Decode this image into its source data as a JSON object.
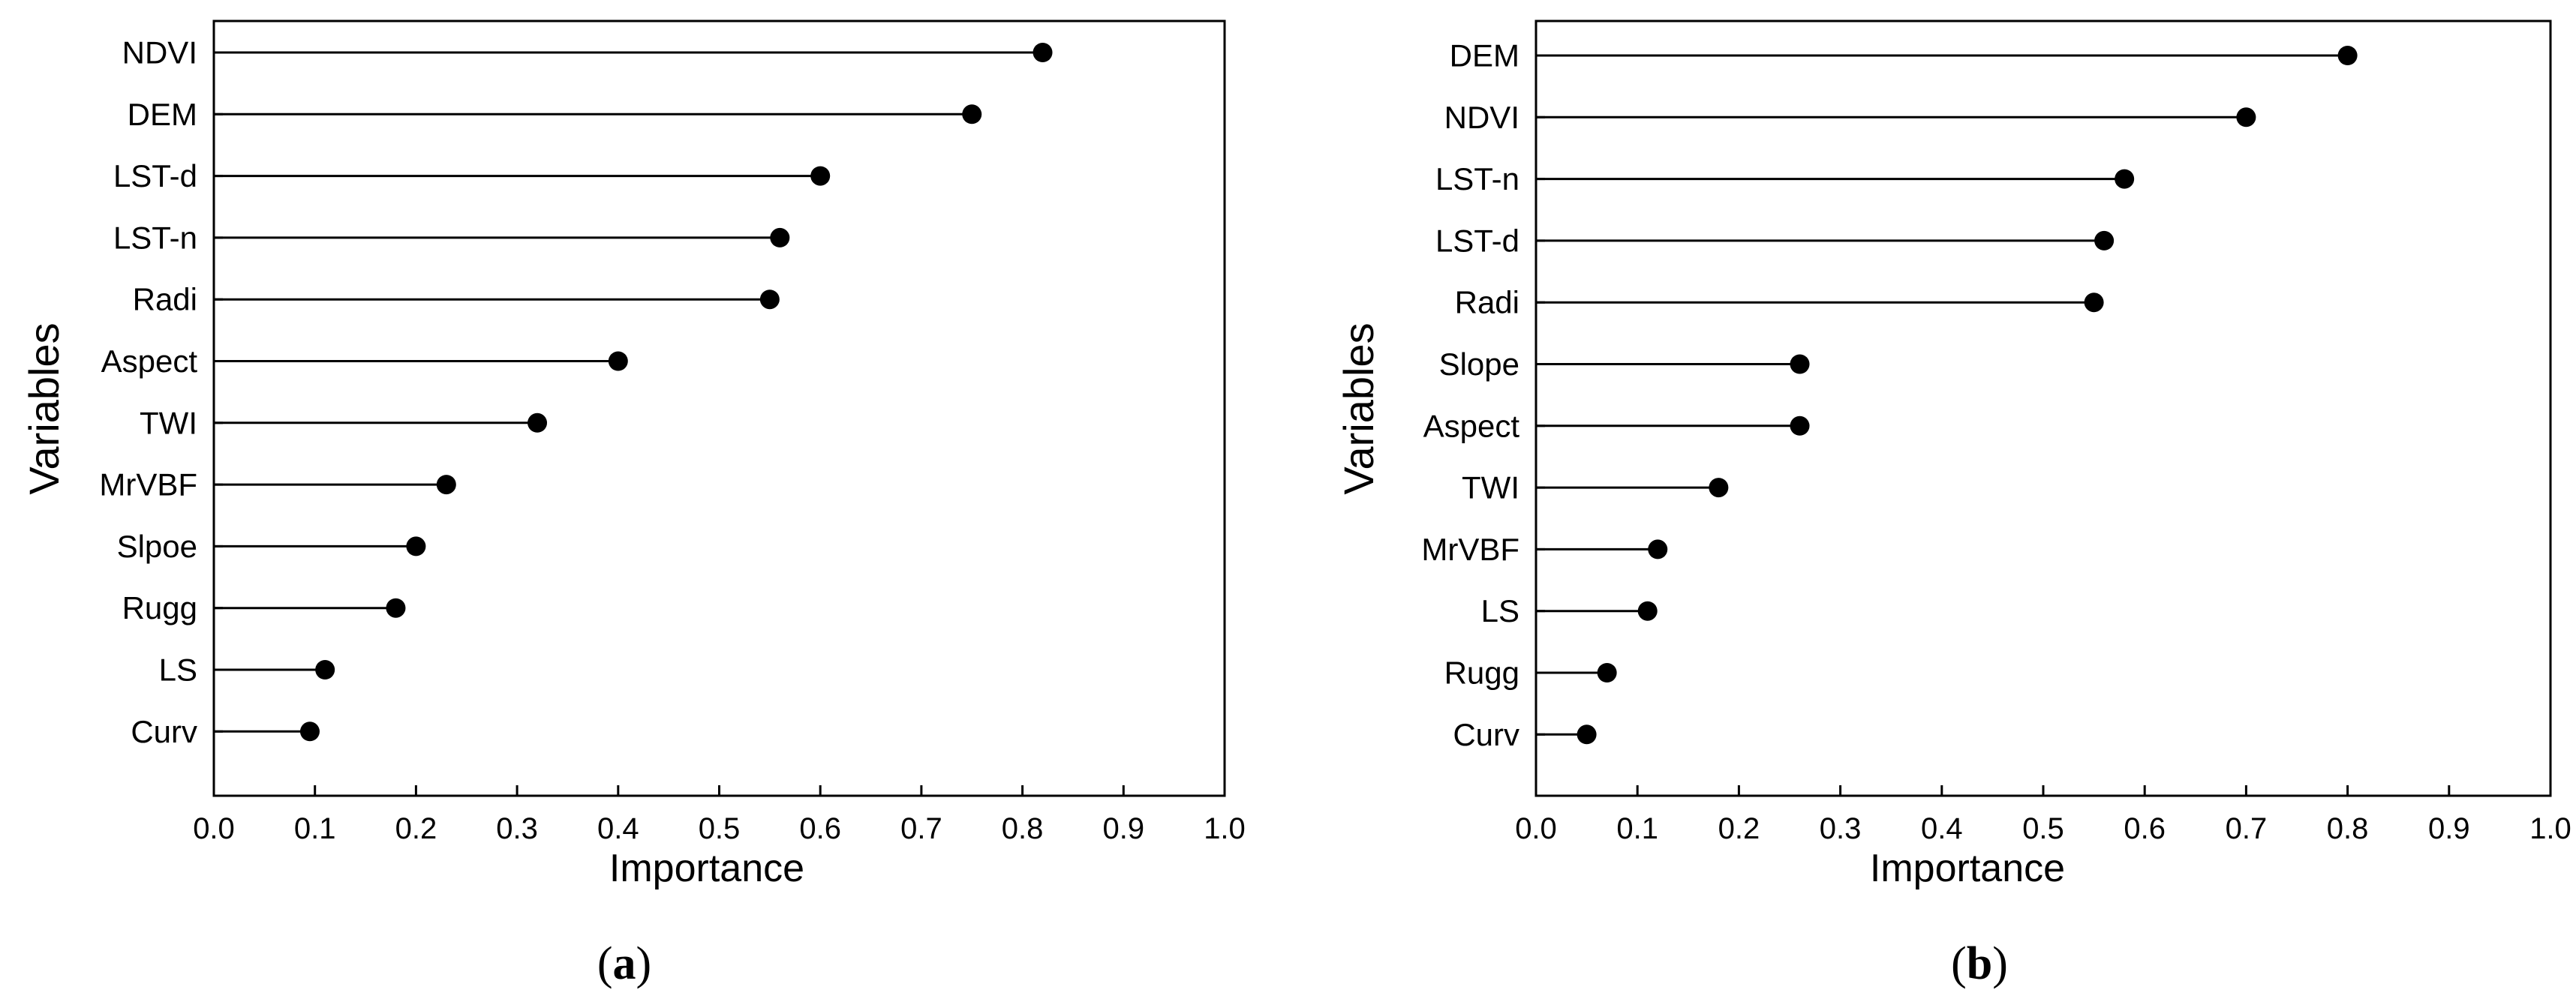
{
  "chart_data": [
    {
      "type": "lollipop",
      "panel_label": "a",
      "xlabel": "Importance",
      "ylabel": "Variables",
      "xlim": [
        0.0,
        1.0
      ],
      "xticks": [
        "0.0",
        "0.1",
        "0.2",
        "0.3",
        "0.4",
        "0.5",
        "0.6",
        "0.7",
        "0.8",
        "0.9",
        "1.0"
      ],
      "categories": [
        "NDVI",
        "DEM",
        "LST-d",
        "LST-n",
        "Radi",
        "Aspect",
        "TWI",
        "MrVBF",
        "Slpoe",
        "Rugg",
        "LS",
        "Curv"
      ],
      "values": [
        0.82,
        0.75,
        0.6,
        0.56,
        0.55,
        0.4,
        0.32,
        0.23,
        0.2,
        0.18,
        0.11,
        0.095
      ],
      "grid": false
    },
    {
      "type": "lollipop",
      "panel_label": "b",
      "xlabel": "Importance",
      "ylabel": "Variables",
      "xlim": [
        0.0,
        1.0
      ],
      "xticks": [
        "0.0",
        "0.1",
        "0.2",
        "0.3",
        "0.4",
        "0.5",
        "0.6",
        "0.7",
        "0.8",
        "0.9",
        "1.0"
      ],
      "categories": [
        "DEM",
        "NDVI",
        "LST-n",
        "LST-d",
        "Radi",
        "Slope",
        "Aspect",
        "TWI",
        "MrVBF",
        "LS",
        "Rugg",
        "Curv"
      ],
      "values": [
        0.8,
        0.7,
        0.58,
        0.56,
        0.55,
        0.26,
        0.26,
        0.18,
        0.12,
        0.11,
        0.07,
        0.05
      ],
      "grid": false
    }
  ]
}
